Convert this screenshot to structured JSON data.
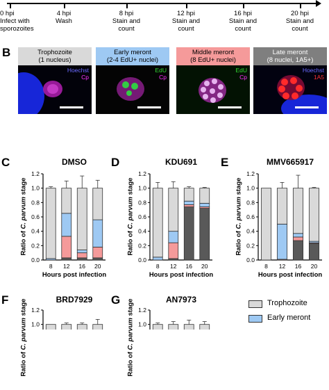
{
  "timeline": {
    "ticks": [
      {
        "label": "0 hpi",
        "sub": [
          "Infect with",
          "sporozoites"
        ]
      },
      {
        "label": "4 hpi",
        "sub": [
          "Wash"
        ]
      },
      {
        "label": "8 hpi",
        "sub": [
          "Stain and",
          "count"
        ]
      },
      {
        "label": "12 hpi",
        "sub": [
          "Stain and",
          "count"
        ]
      },
      {
        "label": "16 hpi",
        "sub": [
          "Stain and",
          "count"
        ]
      },
      {
        "label": "20 hpi",
        "sub": [
          "Stain and",
          "count"
        ]
      }
    ]
  },
  "panel_b": {
    "letter": "B",
    "images": [
      {
        "title": [
          "Trophozoite",
          "(1 nucleus)"
        ],
        "title_bg": "#d9d9d9",
        "labels": [
          {
            "text": "Hoechst",
            "color": "#6a6aff"
          },
          {
            "text": "Cp",
            "color": "#ff33ff"
          }
        ]
      },
      {
        "title": [
          "Early meront",
          "(2-4 EdU+ nuclei)"
        ],
        "title_bg": "#9ec9f3",
        "labels": [
          {
            "text": "EdU",
            "color": "#33dd33"
          },
          {
            "text": "Cp",
            "color": "#ff33ff"
          }
        ]
      },
      {
        "title": [
          "Middle meront",
          "(8 EdU+ nuclei)"
        ],
        "title_bg": "#f59a9a",
        "labels": [
          {
            "text": "EdU",
            "color": "#33dd33"
          },
          {
            "text": "Cp",
            "color": "#ff33ff"
          }
        ]
      },
      {
        "title": [
          "Late meront",
          "(8 nuclei, 1A5+)"
        ],
        "title_bg": "#7f7f7f",
        "title_color": "#ffffff",
        "labels": [
          {
            "text": "Hoechst",
            "color": "#6a6aff"
          },
          {
            "text": "1A5",
            "color": "#ff3333"
          }
        ]
      }
    ]
  },
  "colors": {
    "trophozoite": "#d9d9d9",
    "early_meront": "#9ec9f3",
    "middle_meront": "#f59a9a",
    "late_meront": "#595959"
  },
  "axis_label_y_prefix": "Ratio of ",
  "axis_label_y_species": "C. parvum",
  "axis_label_y_suffix": " stage",
  "axis_label_x": "Hours post infection",
  "chart_data": [
    {
      "letter": "C",
      "title": "DMSO",
      "type": "bar",
      "stacked": true,
      "categories": [
        "8",
        "12",
        "16",
        "20"
      ],
      "yticks": [
        "0.0",
        "0.2",
        "0.4",
        "0.6",
        "0.8",
        "1.0",
        "1.2"
      ],
      "ylim": [
        0,
        1.2
      ],
      "series": [
        {
          "key": "late_meront",
          "values": [
            0.0,
            0.03,
            0.03,
            0.03
          ]
        },
        {
          "key": "middle_meront",
          "values": [
            0.0,
            0.3,
            0.07,
            0.15
          ]
        },
        {
          "key": "early_meront",
          "values": [
            0.02,
            0.32,
            0.04,
            0.38
          ]
        },
        {
          "key": "trophozoite",
          "values": [
            0.98,
            0.35,
            0.86,
            0.44
          ]
        }
      ],
      "error_tops": [
        1.02,
        1.1,
        1.17,
        1.11
      ]
    },
    {
      "letter": "D",
      "title": "KDU691",
      "type": "bar",
      "stacked": true,
      "categories": [
        "8",
        "12",
        "16",
        "20"
      ],
      "yticks": [
        "0.0",
        "0.2",
        "0.4",
        "0.6",
        "0.8",
        "1.0",
        "1.2"
      ],
      "ylim": [
        0,
        1.2
      ],
      "series": [
        {
          "key": "late_meront",
          "values": [
            0.0,
            0.02,
            0.74,
            0.72
          ]
        },
        {
          "key": "middle_meront",
          "values": [
            0.0,
            0.22,
            0.03,
            0.02
          ]
        },
        {
          "key": "early_meront",
          "values": [
            0.04,
            0.16,
            0.05,
            0.05
          ]
        },
        {
          "key": "trophozoite",
          "values": [
            0.96,
            0.6,
            0.18,
            0.21
          ]
        }
      ],
      "error_tops": [
        1.08,
        1.09,
        1.02,
        1.01
      ]
    },
    {
      "letter": "E",
      "title": "MMV665917",
      "type": "bar",
      "stacked": true,
      "categories": [
        "8",
        "12",
        "16",
        "20"
      ],
      "yticks": [
        "0.0",
        "0.2",
        "0.4",
        "0.6",
        "0.8",
        "1.0",
        "1.2"
      ],
      "ylim": [
        0,
        1.2
      ],
      "series": [
        {
          "key": "late_meront",
          "values": [
            0.0,
            0.0,
            0.27,
            0.23
          ]
        },
        {
          "key": "middle_meront",
          "values": [
            0.0,
            0.01,
            0.05,
            0.01
          ]
        },
        {
          "key": "early_meront",
          "values": [
            0.0,
            0.49,
            0.05,
            0.02
          ]
        },
        {
          "key": "trophozoite",
          "values": [
            1.0,
            0.5,
            0.63,
            0.74
          ]
        }
      ],
      "error_tops": [
        1.0,
        1.08,
        1.18,
        1.01
      ]
    },
    {
      "letter": "F",
      "title": "BRD7929",
      "type": "bar",
      "stacked": true,
      "categories": [
        "8",
        "12",
        "16",
        "20"
      ],
      "yticks": [
        "1.0",
        "1.2"
      ],
      "ylim": [
        0,
        1.2
      ],
      "partial": true,
      "series": [
        {
          "key": "trophozoite",
          "values": [
            1.0,
            1.0,
            1.0,
            1.0
          ]
        }
      ],
      "error_tops": [
        1.0,
        1.02,
        1.02,
        1.07
      ]
    },
    {
      "letter": "G",
      "title": "AN7973",
      "type": "bar",
      "stacked": true,
      "categories": [
        "8",
        "12",
        "16",
        "20"
      ],
      "yticks": [
        "1.0",
        "1.2"
      ],
      "ylim": [
        0,
        1.2
      ],
      "partial": true,
      "series": [
        {
          "key": "trophozoite",
          "values": [
            1.0,
            1.0,
            1.0,
            1.0
          ]
        }
      ],
      "error_tops": [
        1.02,
        1.04,
        1.06,
        1.04
      ]
    }
  ],
  "legend": [
    {
      "key": "trophozoite",
      "label": "Trophozoite"
    },
    {
      "key": "early_meront",
      "label": "Early meront"
    }
  ]
}
